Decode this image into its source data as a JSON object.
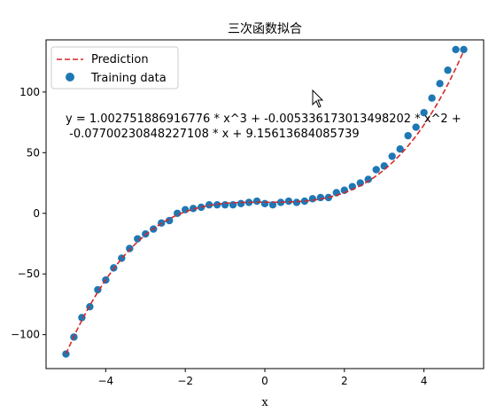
{
  "chart_data": {
    "type": "scatter",
    "title": "三次函数拟合",
    "xlabel": "x",
    "ylabel": "",
    "xlim": [
      -5.5,
      5.5
    ],
    "ylim": [
      -128,
      143
    ],
    "xticks": [
      -4,
      -2,
      0,
      2,
      4
    ],
    "xtick_labels": [
      "−4",
      "−2",
      "0",
      "2",
      "4"
    ],
    "yticks": [
      -100,
      -50,
      0,
      50,
      100
    ],
    "ytick_labels": [
      "−100",
      "−50",
      "0",
      "50",
      "100"
    ],
    "grid": false,
    "legend_position": "top-left",
    "colors": {
      "prediction": "#d62728",
      "training": "#1f77b4"
    },
    "series": [
      {
        "name": "Prediction",
        "kind": "line",
        "style": "dashed",
        "coefficients": [
          1.002751886916776,
          -0.005336173013498202,
          -0.07700230848227108,
          9.15613684085739
        ],
        "x_range": [
          -5,
          5
        ]
      },
      {
        "name": "Training data",
        "kind": "scatter",
        "x": [
          -5.0,
          -4.8,
          -4.6,
          -4.4,
          -4.2,
          -4.0,
          -3.8,
          -3.6,
          -3.4,
          -3.2,
          -3.0,
          -2.8,
          -2.6,
          -2.4,
          -2.2,
          -2.0,
          -1.8,
          -1.6,
          -1.4,
          -1.2,
          -1.0,
          -0.8,
          -0.6,
          -0.4,
          -0.2,
          0.0,
          0.2,
          0.4,
          0.6,
          0.8,
          1.0,
          1.2,
          1.4,
          1.6,
          1.8,
          2.0,
          2.2,
          2.4,
          2.6,
          2.8,
          3.0,
          3.2,
          3.4,
          3.6,
          3.8,
          4.0,
          4.2,
          4.4,
          4.6,
          4.8,
          5.0
        ],
        "y": [
          -116,
          -102,
          -86,
          -77,
          -63,
          -55,
          -45,
          -37,
          -29,
          -21,
          -17,
          -13,
          -8,
          -6,
          0,
          3,
          4,
          5,
          7,
          7,
          7,
          7,
          8,
          9,
          10,
          8,
          7,
          9,
          10,
          9,
          10,
          12,
          13,
          13,
          17,
          19,
          22,
          25,
          28,
          36,
          39,
          47,
          53,
          64,
          71,
          83,
          95,
          107,
          118,
          135,
          135
        ]
      }
    ],
    "annotation": [
      "y = 1.002751886916776 * x^3 + -0.005336173013498202 * x^2 +",
      " -0.07700230848227108 * x + 9.15613684085739"
    ]
  }
}
